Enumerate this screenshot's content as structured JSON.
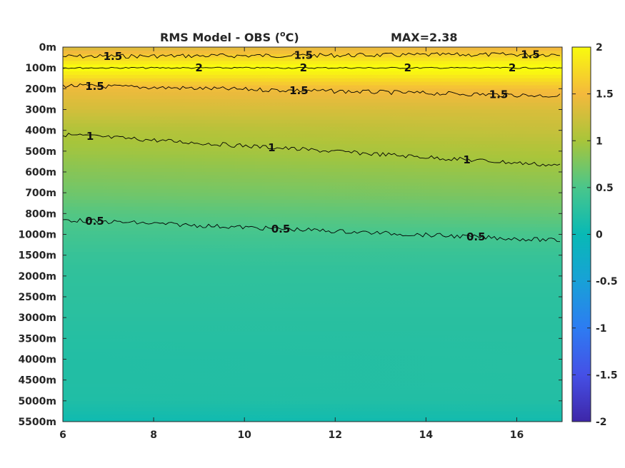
{
  "chart_data": {
    "type": "heatmap",
    "title": "RMS Model - OBS",
    "title_unit": "(°C)",
    "title_unit_parts": [
      "(",
      "o",
      "C)"
    ],
    "max_label": "MAX=2.38",
    "xlabel": "",
    "ylabel": "",
    "xlim": [
      6,
      17
    ],
    "x_ticks": [
      6,
      8,
      10,
      12,
      14,
      16
    ],
    "x_tick_labels": [
      "6",
      "8",
      "10",
      "12",
      "14",
      "16"
    ],
    "depth_labels": [
      "0m",
      "100m",
      "200m",
      "300m",
      "400m",
      "500m",
      "600m",
      "700m",
      "800m",
      "1000m",
      "1500m",
      "2000m",
      "2500m",
      "3000m",
      "3500m",
      "4000m",
      "4500m",
      "5000m",
      "5500m"
    ],
    "colorbar": {
      "colormap": "parula",
      "clim": [
        -2,
        2
      ],
      "ticks": [
        2,
        1.5,
        1,
        0.5,
        0,
        -0.5,
        -1,
        -1.5,
        -2
      ],
      "tick_labels": [
        "2",
        "1.5",
        "1",
        "0.5",
        "0",
        "-0.5",
        "-1",
        "-1.5",
        "-2"
      ]
    },
    "rms_profile": [
      {
        "depth": "0m",
        "left": 1.3,
        "right": 1.45
      },
      {
        "depth": "100m",
        "left": 2.05,
        "right": 2.1
      },
      {
        "depth": "200m",
        "left": 1.45,
        "right": 1.55
      },
      {
        "depth": "300m",
        "left": 1.28,
        "right": 1.32
      },
      {
        "depth": "400m",
        "left": 1.05,
        "right": 1.2
      },
      {
        "depth": "500m",
        "left": 0.95,
        "right": 1.05
      },
      {
        "depth": "600m",
        "left": 0.82,
        "right": 0.92
      },
      {
        "depth": "700m",
        "left": 0.7,
        "right": 0.8
      },
      {
        "depth": "800m",
        "left": 0.55,
        "right": 0.65
      },
      {
        "depth": "1000m",
        "left": 0.45,
        "right": 0.48
      },
      {
        "depth": "1500m",
        "left": 0.35,
        "right": 0.36
      },
      {
        "depth": "2000m",
        "left": 0.3,
        "right": 0.3
      },
      {
        "depth": "2500m",
        "left": 0.28,
        "right": 0.27
      },
      {
        "depth": "3000m",
        "left": 0.25,
        "right": 0.25
      },
      {
        "depth": "3500m",
        "left": 0.22,
        "right": 0.24
      },
      {
        "depth": "4000m",
        "left": 0.2,
        "right": 0.23
      },
      {
        "depth": "4500m",
        "left": 0.2,
        "right": 0.22
      },
      {
        "depth": "5000m",
        "left": 0.18,
        "right": 0.2
      },
      {
        "depth": "5500m",
        "left": 0.05,
        "right": 0.08
      }
    ],
    "contours": [
      {
        "level": 1.5,
        "label": "1.5",
        "depth_left": 0.45,
        "depth_right": 0.35,
        "labels_x": [
          7.1,
          11.3,
          16.3
        ]
      },
      {
        "level": 2,
        "label": "2",
        "depth_left": 1.0,
        "depth_right": 1.0,
        "labels_x": [
          9.0,
          11.3,
          13.6,
          15.9
        ]
      },
      {
        "level": 1.5,
        "label": "1.5",
        "depth_left": 1.85,
        "depth_right": 2.35,
        "labels_x": [
          6.7,
          11.2,
          15.6
        ]
      },
      {
        "level": 1,
        "label": "1",
        "depth_left": 4.2,
        "depth_right": 5.7,
        "labels_x": [
          6.6,
          10.6,
          14.9
        ]
      },
      {
        "level": 0.5,
        "label": "0.5",
        "depth_left": 8.3,
        "depth_right": 9.3,
        "labels_x": [
          6.7,
          10.8,
          15.1
        ]
      }
    ]
  }
}
